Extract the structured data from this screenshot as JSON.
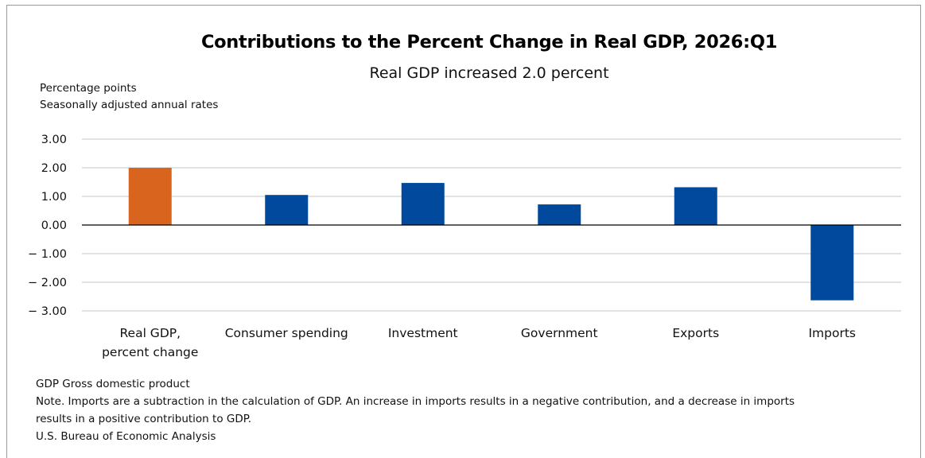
{
  "chart_data": {
    "type": "bar",
    "title": "Contributions to the Percent Change in Real GDP, 2026:Q1",
    "subtitle": "Real GDP increased 2.0 percent",
    "ylabel_lines": [
      "Percentage points",
      "Seasonally adjusted annual rates"
    ],
    "categories": [
      [
        "Real GDP,",
        "percent change"
      ],
      [
        "Consumer spending"
      ],
      [
        "Investment"
      ],
      [
        "Government"
      ],
      [
        "Exports"
      ],
      [
        "Imports"
      ]
    ],
    "values": [
      2.0,
      1.05,
      1.47,
      0.72,
      1.32,
      -2.63
    ],
    "bar_colors": [
      "#d8641d",
      "#00499c",
      "#00499c",
      "#00499c",
      "#00499c",
      "#00499c"
    ],
    "ylim": [
      -3.0,
      3.0
    ],
    "yticks": [
      3.0,
      2.0,
      1.0,
      0.0,
      -1.0,
      -2.0,
      -3.0
    ],
    "ytick_labels": [
      "3.00",
      "2.00",
      "1.00",
      "0.00",
      "− 1.00",
      "− 2.00",
      "− 3.00"
    ],
    "grid": true,
    "legend": "none"
  },
  "notes": {
    "abbrev": "GDP Gross domestic product",
    "note_line1": "Note. Imports are a subtraction in the calculation of GDP. An increase in imports results in a negative contribution, and a decrease in imports",
    "note_line2": "results in a positive contribution to GDP.",
    "source": "U.S. Bureau of Economic Analysis"
  },
  "colors": {
    "grid": "#d9d9d9",
    "zero_line": "#000000",
    "highlight_bar": "#d8641d",
    "standard_bar": "#00499c"
  }
}
